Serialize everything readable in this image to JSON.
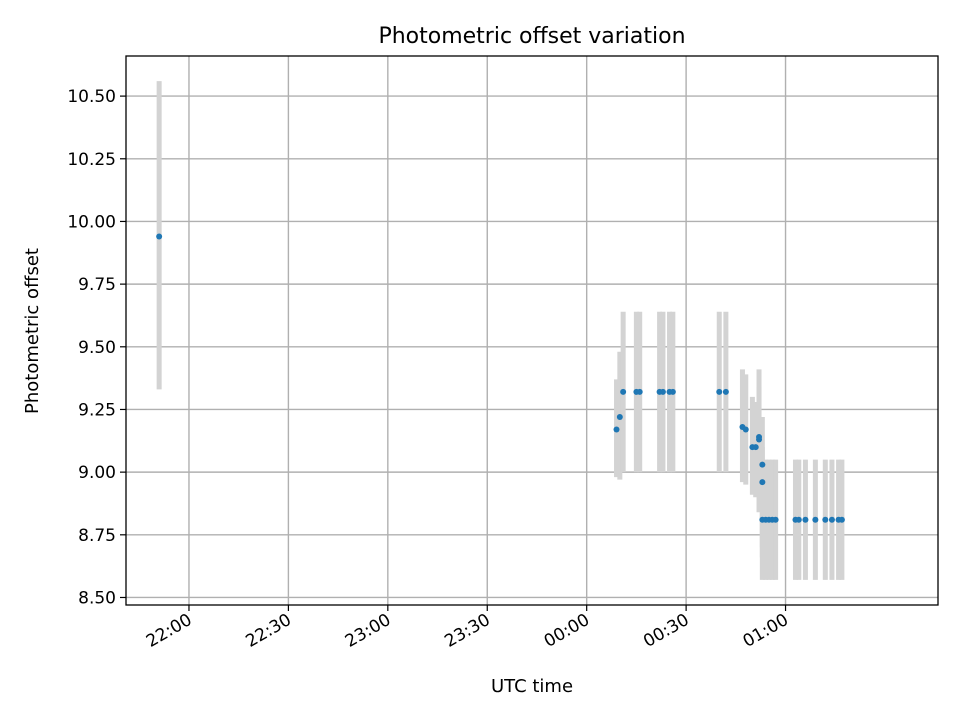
{
  "chart_data": {
    "type": "scatter",
    "title": "Photometric offset variation",
    "xlabel": "UTC time",
    "ylabel": "Photometric offset",
    "x_tick_labels": [
      "22:00",
      "22:30",
      "23:00",
      "23:30",
      "00:00",
      "00:30",
      "01:00"
    ],
    "y_tick_labels": [
      "8.50",
      "8.75",
      "9.00",
      "9.25",
      "9.50",
      "9.75",
      "10.00",
      "10.25",
      "10.50"
    ],
    "y_ticks": [
      8.5,
      8.75,
      9.0,
      9.25,
      9.5,
      9.75,
      10.0,
      10.25,
      10.5
    ],
    "xlim": [
      "21:41",
      "01:46"
    ],
    "ylim": [
      8.47,
      10.66
    ],
    "grid": true,
    "marker_color": "#1f77b4",
    "errorbar_color": "#d3d3d3",
    "points": [
      {
        "x": "21:51",
        "y": 9.94,
        "ylo": 9.33,
        "yhi": 10.56
      },
      {
        "x": "00:09",
        "y": 9.17,
        "ylo": 8.98,
        "yhi": 9.37
      },
      {
        "x": "00:10",
        "y": 9.22,
        "ylo": 8.97,
        "yhi": 9.48
      },
      {
        "x": "00:11",
        "y": 9.32,
        "ylo": 9.0,
        "yhi": 9.64
      },
      {
        "x": "00:15",
        "y": 9.32,
        "ylo": 9.0,
        "yhi": 9.64
      },
      {
        "x": "00:16",
        "y": 9.32,
        "ylo": 9.0,
        "yhi": 9.64
      },
      {
        "x": "00:22",
        "y": 9.32,
        "ylo": 9.0,
        "yhi": 9.64
      },
      {
        "x": "00:23",
        "y": 9.32,
        "ylo": 9.0,
        "yhi": 9.64
      },
      {
        "x": "00:25",
        "y": 9.32,
        "ylo": 9.0,
        "yhi": 9.64
      },
      {
        "x": "00:26",
        "y": 9.32,
        "ylo": 9.0,
        "yhi": 9.64
      },
      {
        "x": "00:40",
        "y": 9.32,
        "ylo": 9.0,
        "yhi": 9.64
      },
      {
        "x": "00:42",
        "y": 9.32,
        "ylo": 9.0,
        "yhi": 9.64
      },
      {
        "x": "00:47",
        "y": 9.18,
        "ylo": 8.96,
        "yhi": 9.41
      },
      {
        "x": "00:48",
        "y": 9.17,
        "ylo": 8.95,
        "yhi": 9.39
      },
      {
        "x": "00:50",
        "y": 9.1,
        "ylo": 8.91,
        "yhi": 9.3
      },
      {
        "x": "00:51",
        "y": 9.1,
        "ylo": 8.9,
        "yhi": 9.28
      },
      {
        "x": "00:52",
        "y": 9.13,
        "ylo": 8.84,
        "yhi": 9.41
      },
      {
        "x": "00:52",
        "y": 9.14,
        "ylo": 8.95,
        "yhi": 9.34
      },
      {
        "x": "00:53",
        "y": 9.03,
        "ylo": 8.66,
        "yhi": 9.1
      },
      {
        "x": "00:53",
        "y": 8.96,
        "ylo": 8.7,
        "yhi": 9.22
      },
      {
        "x": "00:53",
        "y": 8.81,
        "ylo": 8.57,
        "yhi": 9.05
      },
      {
        "x": "00:54",
        "y": 8.81,
        "ylo": 8.57,
        "yhi": 9.05
      },
      {
        "x": "00:55",
        "y": 8.81,
        "ylo": 8.57,
        "yhi": 9.05
      },
      {
        "x": "00:56",
        "y": 8.81,
        "ylo": 8.57,
        "yhi": 9.05
      },
      {
        "x": "00:57",
        "y": 8.81,
        "ylo": 8.57,
        "yhi": 9.05
      },
      {
        "x": "01:03",
        "y": 8.81,
        "ylo": 8.57,
        "yhi": 9.05
      },
      {
        "x": "01:04",
        "y": 8.81,
        "ylo": 8.57,
        "yhi": 9.05
      },
      {
        "x": "01:06",
        "y": 8.81,
        "ylo": 8.57,
        "yhi": 9.05
      },
      {
        "x": "01:09",
        "y": 8.81,
        "ylo": 8.57,
        "yhi": 9.05
      },
      {
        "x": "01:12",
        "y": 8.81,
        "ylo": 8.57,
        "yhi": 9.05
      },
      {
        "x": "01:14",
        "y": 8.81,
        "ylo": 8.57,
        "yhi": 9.05
      },
      {
        "x": "01:16",
        "y": 8.81,
        "ylo": 8.57,
        "yhi": 9.05
      },
      {
        "x": "01:17",
        "y": 8.81,
        "ylo": 8.57,
        "yhi": 9.05
      }
    ]
  }
}
